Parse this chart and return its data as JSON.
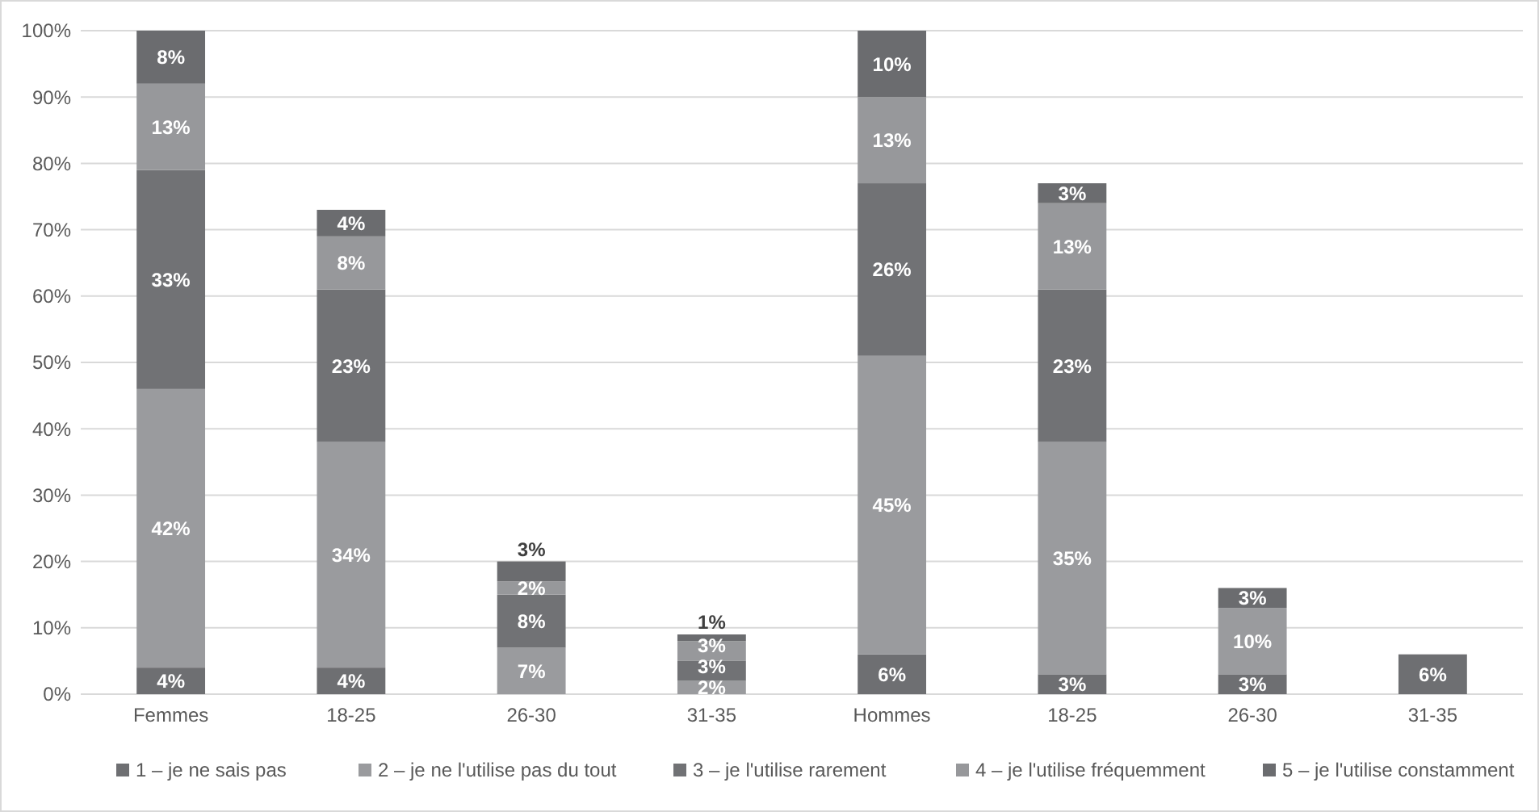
{
  "chart_data": {
    "type": "bar",
    "stacked": true,
    "grid": "y",
    "legend": "bottom",
    "categories": [
      "Femmes",
      "18-25",
      "26-30",
      "31-35",
      "Hommes",
      "18-25",
      "26-30",
      "31-35"
    ],
    "series": [
      {
        "name": "1 – je ne sais pas",
        "color": "#6e6f72",
        "values": [
          4,
          4,
          null,
          null,
          6,
          3,
          3,
          6
        ],
        "value_labels": [
          "4%",
          "4%",
          null,
          null,
          "6%",
          "3%",
          "3%",
          "6%"
        ]
      },
      {
        "name": "2 – je ne l'utilise pas du tout",
        "color": "#9a9b9e",
        "values": [
          42,
          34,
          7,
          2,
          45,
          35,
          10,
          null
        ],
        "value_labels": [
          "42%",
          "34%",
          "7%",
          "2%",
          "45%",
          "35%",
          "10%",
          null
        ]
      },
      {
        "name": "3 – je l'utilise rarement",
        "color": "#717275",
        "values": [
          33,
          23,
          8,
          3,
          26,
          23,
          null,
          null
        ],
        "value_labels": [
          "33%",
          "23%",
          "8%",
          "3%",
          "26%",
          "23%",
          null,
          null
        ]
      },
      {
        "name": "4 – je l'utilise fréquemment",
        "color": "#97989b",
        "values": [
          13,
          8,
          2,
          3,
          13,
          13,
          null,
          null
        ],
        "value_labels": [
          "13%",
          "8%",
          "2%",
          "3%",
          "13%",
          "13%",
          null,
          null
        ]
      },
      {
        "name": "5 – je l'utilise constamment",
        "color": "#6b6c6f",
        "values": [
          8,
          4,
          3,
          1,
          10,
          3,
          3,
          null
        ],
        "value_labels": [
          "8%",
          "4%",
          "3%",
          "1%",
          "10%",
          "3%",
          "3%",
          null
        ]
      }
    ],
    "ylim": [
      0,
      100
    ],
    "yticks": [
      {
        "value": 0,
        "label": "0%"
      },
      {
        "value": 10,
        "label": "10%"
      },
      {
        "value": 20,
        "label": "20%"
      },
      {
        "value": 30,
        "label": "30%"
      },
      {
        "value": 40,
        "label": "40%"
      },
      {
        "value": 50,
        "label": "50%"
      },
      {
        "value": 60,
        "label": "60%"
      },
      {
        "value": 70,
        "label": "70%"
      },
      {
        "value": 80,
        "label": "80%"
      },
      {
        "value": 90,
        "label": "90%"
      },
      {
        "value": 100,
        "label": "100%"
      }
    ]
  }
}
